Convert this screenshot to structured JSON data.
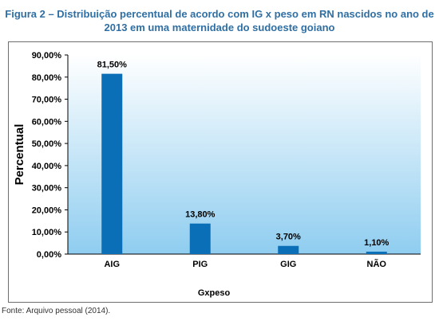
{
  "figure": {
    "title_line1": "Figura 2 – Distribuição percentual de acordo com IG x peso em RN nascidos no ano de",
    "title_line2": "2013 em uma maternidade do sudoeste goiano",
    "source": "Fonte: Arquivo pessoal (2014)."
  },
  "colors": {
    "title": "#2f6fa3",
    "bar": "#0b6fb8",
    "plot_top": "#ffffff",
    "plot_bottom": "#8fcdf0"
  },
  "chart_data": {
    "type": "bar",
    "categories": [
      "AIG",
      "PIG",
      "GIG",
      "NÃO"
    ],
    "values": [
      81.5,
      13.8,
      3.7,
      1.1
    ],
    "data_labels": [
      "81,50%",
      "13,80%",
      "3,70%",
      "1,10%"
    ],
    "xlabel": "Gxpeso",
    "ylabel": "Percentual",
    "ylim": [
      0,
      90
    ],
    "yticks": [
      0,
      10,
      20,
      30,
      40,
      50,
      60,
      70,
      80,
      90
    ],
    "ytick_labels": [
      "0,00%",
      "10,00%",
      "20,00%",
      "30,00%",
      "40,00%",
      "50,00%",
      "60,00%",
      "70,00%",
      "80,00%",
      "90,00%"
    ],
    "grid": false,
    "legend": "none"
  }
}
